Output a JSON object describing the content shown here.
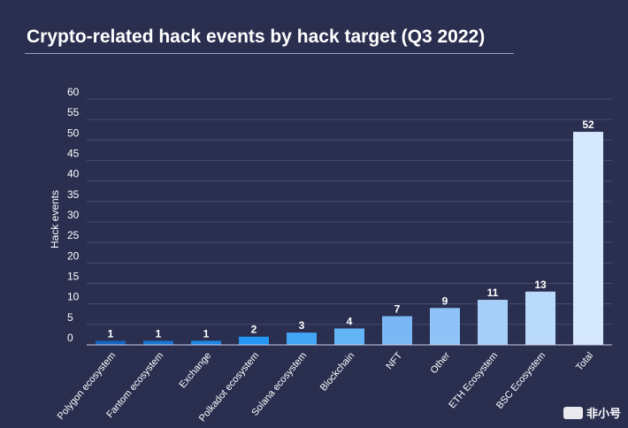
{
  "chart_data": {
    "type": "bar",
    "title": "Crypto-related hack events by hack target (Q3 2022)",
    "ylabel": "Hack events",
    "xlabel": "",
    "ylim": [
      0,
      60
    ],
    "yticks": [
      0,
      5,
      10,
      15,
      20,
      25,
      30,
      35,
      40,
      45,
      50,
      55,
      60
    ],
    "categories": [
      "Polygon ecosystem",
      "Fantom ecosystem",
      "Exchange",
      "Polkadot ecosystem",
      "Solana ecosystem",
      "Blockchain",
      "NFT",
      "Other",
      "ETH Ecosystem",
      "BSC Ecosystem",
      "Total"
    ],
    "values": [
      1,
      1,
      1,
      2,
      3,
      4,
      7,
      9,
      11,
      13,
      52
    ],
    "bar_colors": [
      "#1565c0",
      "#1976d2",
      "#1e88e5",
      "#2196f3",
      "#42a5f5",
      "#64b5f6",
      "#7ab8f5",
      "#8fc3f7",
      "#a5cef9",
      "#badafb",
      "#d6e8fd"
    ],
    "grid": true,
    "legend": "none"
  },
  "watermark": {
    "text": "非小号"
  }
}
